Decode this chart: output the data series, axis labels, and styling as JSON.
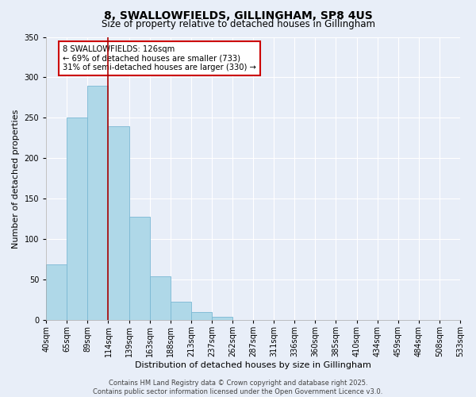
{
  "title": "8, SWALLOWFIELDS, GILLINGHAM, SP8 4US",
  "subtitle": "Size of property relative to detached houses in Gillingham",
  "xlabel": "Distribution of detached houses by size in Gillingham",
  "ylabel": "Number of detached properties",
  "bar_values": [
    69,
    250,
    290,
    240,
    128,
    54,
    23,
    10,
    4,
    0,
    0,
    0,
    0,
    0,
    0,
    0,
    0,
    0,
    0,
    0
  ],
  "bar_labels": [
    "40sqm",
    "65sqm",
    "89sqm",
    "114sqm",
    "139sqm",
    "163sqm",
    "188sqm",
    "213sqm",
    "237sqm",
    "262sqm",
    "287sqm",
    "311sqm",
    "336sqm",
    "360sqm",
    "385sqm",
    "410sqm",
    "434sqm",
    "459sqm",
    "484sqm",
    "508sqm",
    "533sqm"
  ],
  "bar_color": "#afd8e8",
  "bar_edge_color": "#7ab8d4",
  "vline_x": 3.0,
  "vline_color": "#aa0000",
  "ylim": [
    0,
    350
  ],
  "yticks": [
    0,
    50,
    100,
    150,
    200,
    250,
    300,
    350
  ],
  "annotation_title": "8 SWALLOWFIELDS: 126sqm",
  "annotation_line1": "← 69% of detached houses are smaller (733)",
  "annotation_line2": "31% of semi-detached houses are larger (330) →",
  "footer_line1": "Contains HM Land Registry data © Crown copyright and database right 2025.",
  "footer_line2": "Contains public sector information licensed under the Open Government Licence v3.0.",
  "background_color": "#e8eef8",
  "grid_color": "#ffffff",
  "title_fontsize": 10,
  "subtitle_fontsize": 8.5,
  "xlabel_fontsize": 8,
  "ylabel_fontsize": 8,
  "tick_fontsize": 7,
  "footer_fontsize": 6
}
